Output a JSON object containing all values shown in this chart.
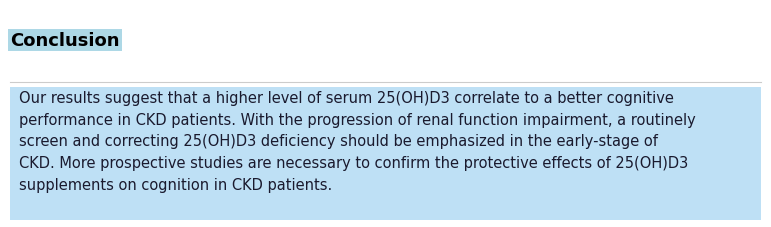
{
  "title": "Conclusion",
  "title_fontsize": 13,
  "title_fontweight": "bold",
  "title_highlight_color": "#ADD8E6",
  "body_text": "Our results suggest that a higher level of serum 25(OH)D3 correlate to a better cognitive\nperformance in CKD patients. With the progression of renal function impairment, a routinely\nscreen and correcting 25(OH)D3 deficiency should be emphasized in the early-stage of\nCKD. More prospective studies are necessary to confirm the protective effects of 25(OH)D3\nsupplements on cognition in CKD patients.",
  "body_fontsize": 10.5,
  "body_highlight_color": "#BEE0F5",
  "body_text_color": "#1a1a2e",
  "background_color": "#ffffff",
  "separator_color": "#cccccc",
  "font_family": "DejaVu Sans"
}
